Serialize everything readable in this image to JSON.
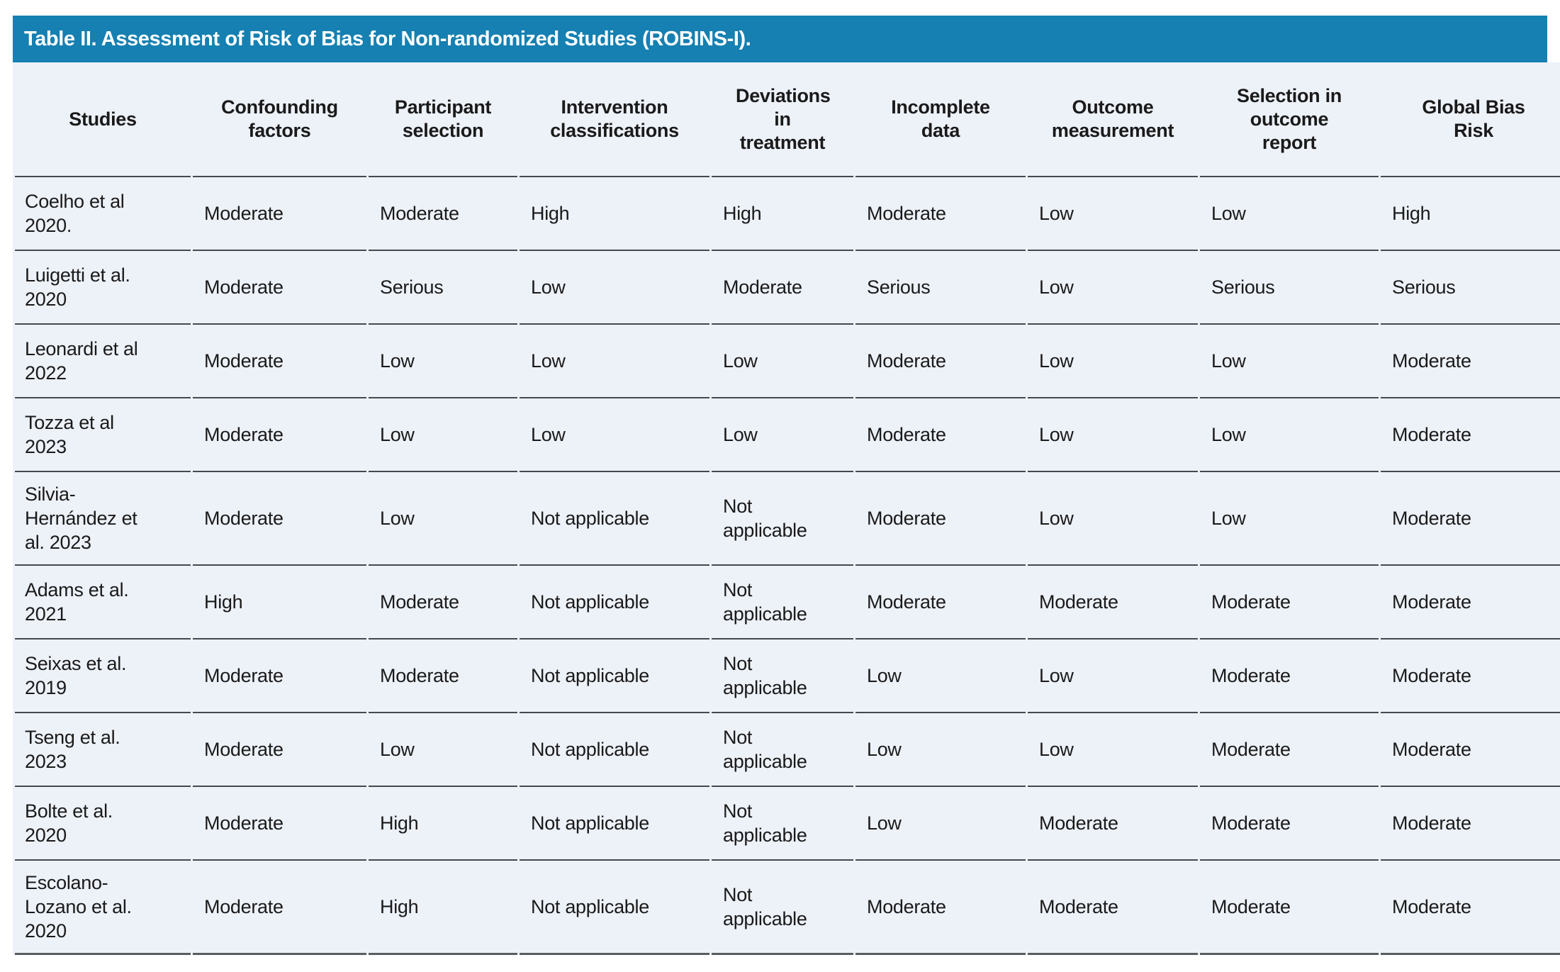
{
  "title": "Table II. Assessment of Risk of Bias for Non-randomized Studies (ROBINS-I).",
  "table": {
    "columns": [
      "Studies",
      "Confounding factors",
      "Participant selection",
      "Intervention classifications",
      "Deviations in treatment",
      "Incomplete data",
      "Outcome measurement",
      "Selection in outcome report",
      "Global Bias Risk"
    ],
    "rows": [
      {
        "study": "Coelho et al 2020.",
        "values": [
          "Moderate",
          "Moderate",
          "High",
          "High",
          "Moderate",
          "Low",
          "Low",
          "High"
        ]
      },
      {
        "study": "Luigetti et al. 2020",
        "values": [
          "Moderate",
          "Serious",
          "Low",
          "Moderate",
          "Serious",
          "Low",
          "Serious",
          "Serious"
        ]
      },
      {
        "study": "Leonardi et al 2022",
        "values": [
          "Moderate",
          "Low",
          "Low",
          "Low",
          "Moderate",
          "Low",
          "Low",
          "Moderate"
        ]
      },
      {
        "study": "Tozza et al 2023",
        "values": [
          "Moderate",
          "Low",
          "Low",
          "Low",
          "Moderate",
          "Low",
          "Low",
          "Moderate"
        ]
      },
      {
        "study": "Silvia-Hernández et al. 2023",
        "values": [
          "Moderate",
          "Low",
          "Not applicable",
          "Not applicable",
          "Moderate",
          "Low",
          "Low",
          "Moderate"
        ]
      },
      {
        "study": "Adams et al. 2021",
        "values": [
          "High",
          "Moderate",
          "Not applicable",
          "Not applicable",
          "Moderate",
          "Moderate",
          "Moderate",
          "Moderate"
        ]
      },
      {
        "study": "Seixas et al. 2019",
        "values": [
          "Moderate",
          "Moderate",
          "Not applicable",
          "Not applicable",
          "Low",
          "Low",
          "Moderate",
          "Moderate"
        ]
      },
      {
        "study": "Tseng et al. 2023",
        "values": [
          "Moderate",
          "Low",
          "Not applicable",
          "Not applicable",
          "Low",
          "Low",
          "Moderate",
          "Moderate"
        ]
      },
      {
        "study": "Bolte et al. 2020",
        "values": [
          "Moderate",
          "High",
          "Not applicable",
          "Not applicable",
          "Low",
          "Moderate",
          "Moderate",
          "Moderate"
        ]
      },
      {
        "study": "Escolano-Lozano et al. 2020",
        "values": [
          "Moderate",
          "High",
          "Not applicable",
          "Not applicable",
          "Moderate",
          "Moderate",
          "Moderate",
          "Moderate"
        ]
      }
    ]
  },
  "colors": {
    "header_bar": "#1580b1",
    "title_text": "#ffffff",
    "row_bg": "#edf1f8",
    "divider": "#45494e",
    "divider_strong": "#585d62",
    "text": "#1a1a1a"
  }
}
